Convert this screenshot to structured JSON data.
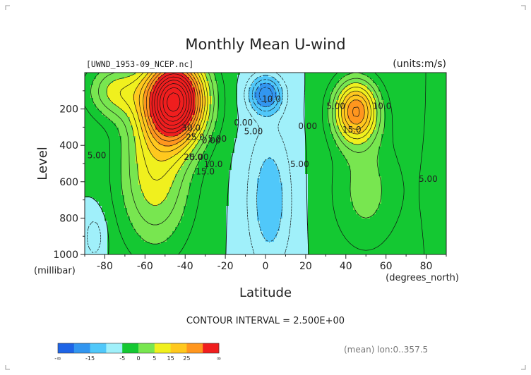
{
  "chart_data": {
    "type": "heatmap",
    "title": "Monthly Mean U-wind",
    "dataset_label": "[UWND_1953-09_NCEP.nc]",
    "units_label": "(units:m/s)",
    "xlabel": "Latitude",
    "x_unit": "(degrees_north)",
    "ylabel": "Level",
    "y_unit": "(millibar)",
    "xlim": [
      -90,
      90
    ],
    "ylim": [
      1000,
      0
    ],
    "x_ticks": [
      -80,
      -60,
      -40,
      -20,
      0,
      20,
      40,
      60,
      80
    ],
    "y_ticks": [
      200,
      400,
      600,
      800,
      1000
    ],
    "contour_interval_text": "CONTOUR INTERVAL = 2.500E+00",
    "footer_text": "(mean) lon:0..357.5",
    "contour_labels": [
      {
        "text": "10.0",
        "x": 3,
        "y": 160
      },
      {
        "text": "5.00",
        "x": 35,
        "y": 200
      },
      {
        "text": "10.0",
        "x": 58,
        "y": 200
      },
      {
        "text": "15.0",
        "x": 43,
        "y": 330
      },
      {
        "text": "5.00",
        "x": 81,
        "y": 600
      },
      {
        "text": "30.0",
        "x": -37,
        "y": 320
      },
      {
        "text": "25.0",
        "x": -35,
        "y": 370
      },
      {
        "text": "20.0",
        "x": -36,
        "y": 480
      },
      {
        "text": "15.0",
        "x": -30,
        "y": 560
      },
      {
        "text": "10.0",
        "x": -26,
        "y": 520
      },
      {
        "text": "5.00",
        "x": -33,
        "y": 480
      },
      {
        "text": "0.00",
        "x": -27,
        "y": 390
      },
      {
        "text": "5.00",
        "x": -24,
        "y": 380
      },
      {
        "text": "0.00",
        "x": -11,
        "y": 290
      },
      {
        "text": "5.00",
        "x": -6,
        "y": 340
      },
      {
        "text": "0.00",
        "x": 21,
        "y": 310
      },
      {
        "text": "5.00",
        "x": 17,
        "y": 520
      },
      {
        "text": "5.00",
        "x": -84,
        "y": 470
      }
    ],
    "colorbar": {
      "labels": [
        "-∞",
        "-15",
        "-5",
        "0",
        "5",
        "15",
        "25",
        "∞"
      ],
      "colors": [
        "#1e64e6",
        "#3296f0",
        "#50c8fa",
        "#a0f0fa",
        "#14c832",
        "#78e650",
        "#f0f01e",
        "#ffc81e",
        "#ff961e",
        "#f01e1e"
      ]
    },
    "regions": [
      {
        "name": "sh-jet",
        "color": "#f0f01e",
        "points": [
          [
            -85,
            0
          ],
          [
            -32,
            0
          ],
          [
            -22,
            200
          ],
          [
            -18,
            500
          ],
          [
            -22,
            800
          ],
          [
            -28,
            1000
          ],
          [
            -65,
            1000
          ],
          [
            -78,
            600
          ],
          [
            -85,
            200
          ]
        ]
      },
      {
        "name": "nh-jet",
        "color": "#f0f01e",
        "points": [
          [
            28,
            0
          ],
          [
            62,
            0
          ],
          [
            75,
            220
          ],
          [
            70,
            500
          ],
          [
            62,
            700
          ],
          [
            50,
            760
          ],
          [
            38,
            650
          ],
          [
            30,
            350
          ]
        ]
      }
    ]
  }
}
